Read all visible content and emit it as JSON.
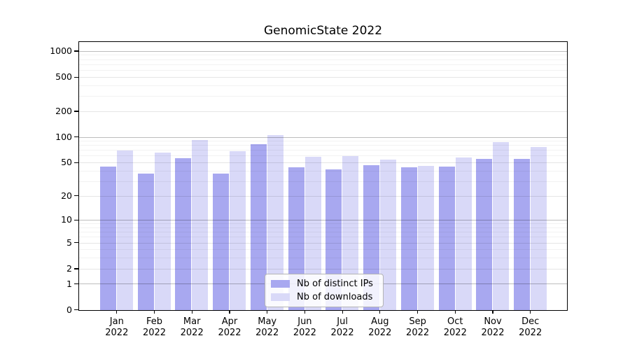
{
  "title": "GenomicState 2022",
  "chart_data": {
    "type": "bar",
    "title": "GenomicState 2022",
    "categories": [
      "Jan",
      "Feb",
      "Mar",
      "Apr",
      "May",
      "Jun",
      "Jul",
      "Aug",
      "Sep",
      "Oct",
      "Nov",
      "Dec"
    ],
    "category_year": "2022",
    "series": [
      {
        "name": "Nb of distinct IPs",
        "color": "#a8a8f0",
        "values": [
          45,
          37,
          57,
          37,
          83,
          44,
          42,
          47,
          44,
          45,
          56,
          56
        ]
      },
      {
        "name": "Nb of downloads",
        "color": "#d9d9f8",
        "values": [
          70,
          66,
          93,
          69,
          107,
          59,
          60,
          55,
          46,
          58,
          88,
          77
        ]
      }
    ],
    "yscale": "log1p",
    "ylim": [
      0,
      1280
    ],
    "yticks": [
      0,
      1,
      2,
      5,
      10,
      20,
      50,
      100,
      200,
      500,
      1000
    ],
    "grid": true,
    "legend_position": "inside lower center",
    "colors": {
      "grid_major": "rgba(0,0,0,0.26)",
      "grid_mid": "rgba(0,0,0,0.10)",
      "grid_minor": "rgba(0,0,0,0.05)",
      "axis": "#000000",
      "background": "#ffffff"
    }
  }
}
